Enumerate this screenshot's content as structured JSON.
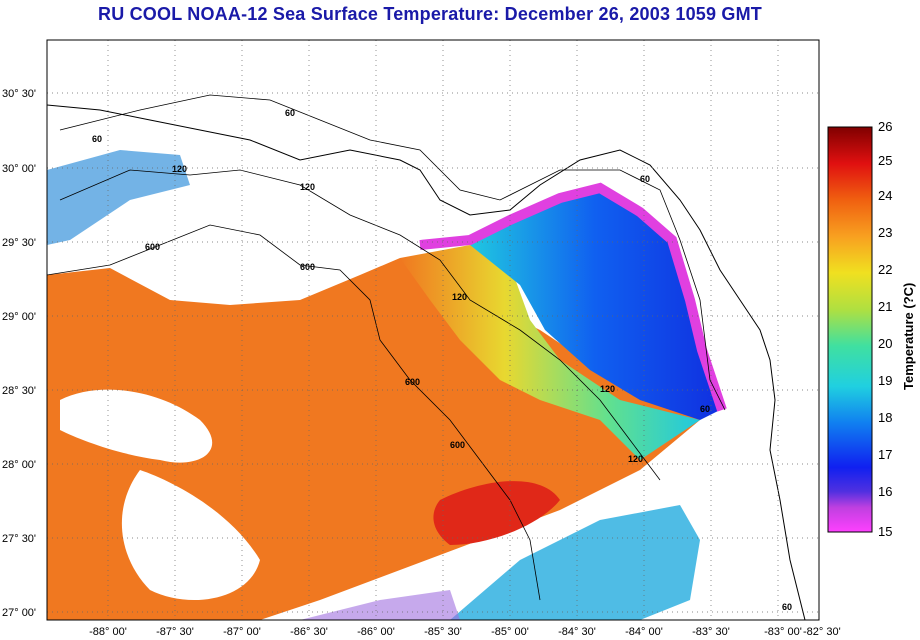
{
  "title": "RU COOL  NOAA-12  Sea Surface Temperature:  December 26, 2003 1059 GMT",
  "map": {
    "lon_range": [
      -88.25,
      -82.5
    ],
    "lat_range": [
      26.95,
      30.9
    ],
    "x_ticks": [
      "-88° 00'",
      "-87° 30'",
      "-87° 00'",
      "-86° 30'",
      "-86° 00'",
      "-85° 30'",
      "-85° 00'",
      "-84° 30'",
      "-84° 00'",
      "-83° 30'",
      "-83° 00'",
      "-82° 30'"
    ],
    "y_ticks": [
      "30° 30'",
      "30° 00'",
      "29° 30'",
      "29° 00'",
      "28° 30'",
      "28° 00'",
      "27° 30'",
      "27° 00'"
    ],
    "contour_labels": [
      "60",
      "60",
      "120",
      "120",
      "600",
      "600",
      "120",
      "600",
      "600",
      "120",
      "120",
      "60",
      "60",
      "60"
    ]
  },
  "colorbar": {
    "title": "Temperature (?C)",
    "ticks": [
      "26",
      "25",
      "24",
      "23",
      "22",
      "21",
      "20",
      "19",
      "18",
      "17",
      "16",
      "15"
    ],
    "range": [
      15,
      26
    ]
  },
  "colors": {
    "title": "#1a1aa8",
    "warm": "#f07820",
    "hot": "#e02010",
    "mid": "#e8e030",
    "cool": "#20c8e0",
    "cold": "#1040e0",
    "coldest": "#e040e0"
  }
}
